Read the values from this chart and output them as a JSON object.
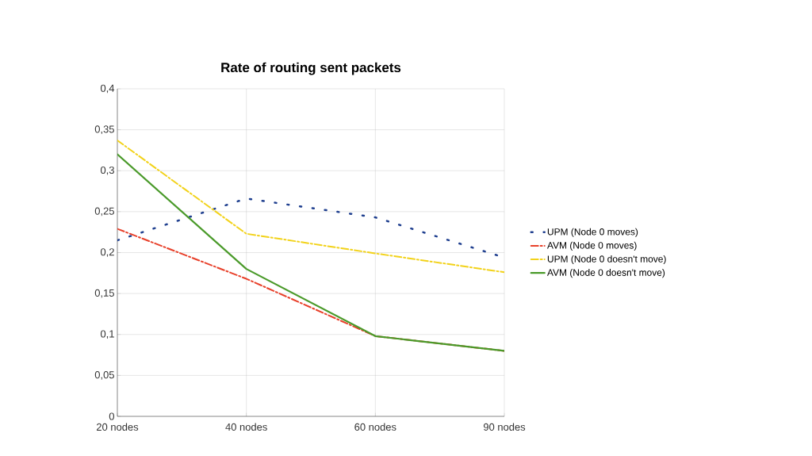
{
  "chart_data": {
    "type": "line",
    "title": "Rate of routing sent packets",
    "categories": [
      "20 nodes",
      "40 nodes",
      "60 nodes",
      "90 nodes"
    ],
    "series": [
      {
        "name": "UPM (Node 0 moves)",
        "color": "#1f3f8f",
        "line_style": "dotted",
        "values": [
          0.215,
          0.266,
          0.243,
          0.194
        ]
      },
      {
        "name": "AVM (Node 0 moves)",
        "color": "#e8402a",
        "line_style": "dashed",
        "values": [
          0.229,
          0.168,
          0.098,
          0.08
        ]
      },
      {
        "name": "UPM (Node 0 doesn't move)",
        "color": "#f2d21a",
        "line_style": "dashed",
        "values": [
          0.337,
          0.223,
          0.199,
          0.176
        ]
      },
      {
        "name": "AVM (Node 0 doesn't move)",
        "color": "#4a9a2a",
        "line_style": "solid",
        "values": [
          0.32,
          0.18,
          0.098,
          0.08
        ]
      }
    ],
    "ylim": [
      0,
      0.4
    ],
    "yticks": [
      0,
      {
        "value": 0.05,
        "label": "0,05"
      },
      {
        "value": 0.1,
        "label": "0,1"
      },
      {
        "value": 0.15,
        "label": "0,15"
      },
      {
        "value": 0.2,
        "label": "0,2"
      },
      {
        "value": 0.25,
        "label": "0,25"
      },
      {
        "value": 0.3,
        "label": "0,3"
      },
      {
        "value": 0.35,
        "label": "0,35"
      },
      {
        "value": 0.4,
        "label": "0,4"
      }
    ],
    "grid": true,
    "legend": "right",
    "marker": "none"
  }
}
